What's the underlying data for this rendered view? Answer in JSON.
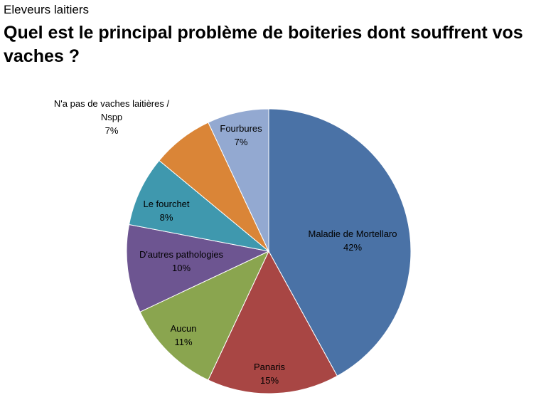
{
  "header": {
    "subtitle": "Eleveurs laitiers",
    "title": "Quel est le principal problème de boiteries dont souffrent vos vaches ?"
  },
  "chart_data": {
    "type": "pie",
    "title": "Quel est le principal problème de boiteries dont souffrent vos vaches ?",
    "subtitle": "Eleveurs laitiers",
    "slices": [
      {
        "label": "Maladie de Mortellaro",
        "value": 42,
        "value_label": "42%",
        "color": "#4A72A6"
      },
      {
        "label": "Panaris",
        "value": 15,
        "value_label": "15%",
        "color": "#A84644"
      },
      {
        "label": "Aucun",
        "value": 11,
        "value_label": "11%",
        "color": "#8AA54F"
      },
      {
        "label": "D'autres pathologies",
        "value": 10,
        "value_label": "10%",
        "color": "#6D5591"
      },
      {
        "label": "Le fourchet",
        "value": 8,
        "value_label": "8%",
        "color": "#3F98AE"
      },
      {
        "label": "N'a pas de vaches laitières / Nspp",
        "value": 7,
        "value_label": "7%",
        "color": "#DA8537"
      },
      {
        "label": "Fourbures",
        "value": 7,
        "value_label": "7%",
        "color": "#93A9D1"
      }
    ]
  }
}
